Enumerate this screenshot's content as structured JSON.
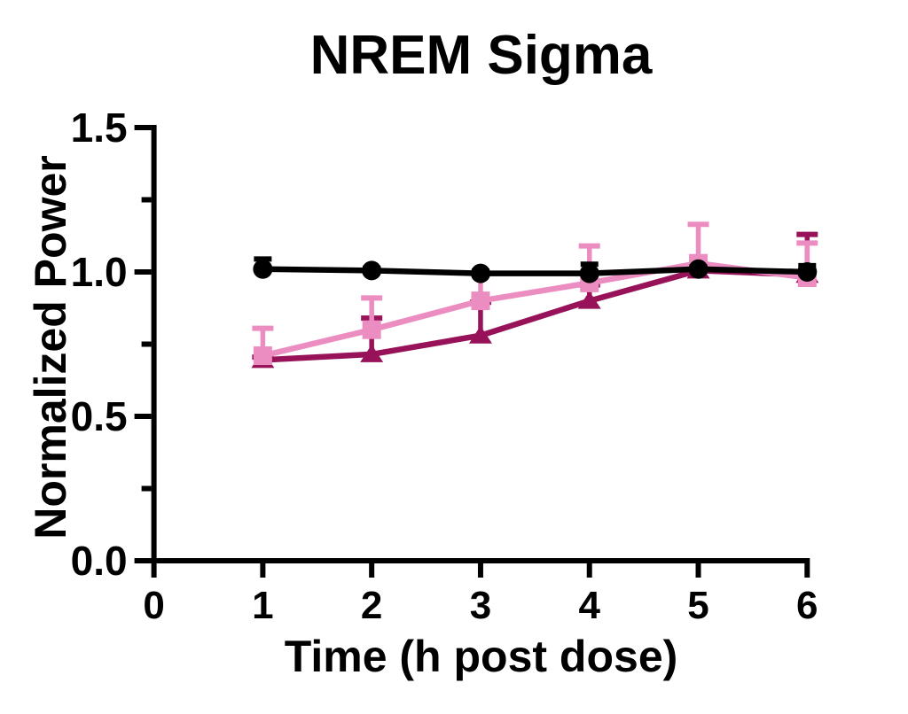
{
  "chart_data": {
    "type": "line",
    "title": "NREM Sigma",
    "xlabel": "Time (h post dose)",
    "ylabel": "Normalized Power",
    "xlim": [
      0,
      6
    ],
    "ylim": [
      0.0,
      1.5
    ],
    "x_ticks": [
      0,
      1,
      2,
      3,
      4,
      5,
      6
    ],
    "x_tick_labels": [
      "0",
      "1",
      "2",
      "3",
      "4",
      "5",
      "6"
    ],
    "y_ticks_major": [
      0.0,
      0.5,
      1.0,
      1.5
    ],
    "y_tick_labels": [
      "0.0",
      "0.5",
      "1.0",
      "1.5"
    ],
    "y_ticks_minor": [
      0.25,
      0.75,
      1.25
    ],
    "grid": false,
    "legend": "none",
    "background_color": "#FFFFFF",
    "axis_color": "#000000",
    "x": [
      1,
      2,
      3,
      4,
      5,
      6
    ],
    "series": [
      {
        "name": "dark-magenta-triangles",
        "marker": "triangle",
        "color": "#98125A",
        "values": [
          0.695,
          0.715,
          0.78,
          0.9,
          1.005,
          0.99
        ],
        "err_up": [
          0.01,
          0.125,
          0.115,
          0.055,
          0.01,
          0.14
        ]
      },
      {
        "name": "pink-squares",
        "marker": "square",
        "color": "#EC8DC2",
        "values": [
          0.71,
          0.8,
          0.9,
          0.962,
          1.03,
          0.98
        ],
        "err_up": [
          0.095,
          0.11,
          0.095,
          0.128,
          0.135,
          0.12
        ]
      },
      {
        "name": "black-circles",
        "marker": "circle",
        "color": "#000000",
        "values": [
          1.01,
          1.005,
          0.995,
          0.995,
          1.01,
          1.0
        ],
        "err_up": [
          0.035,
          0.008,
          0.008,
          0.032,
          0.008,
          0.022
        ]
      }
    ]
  }
}
